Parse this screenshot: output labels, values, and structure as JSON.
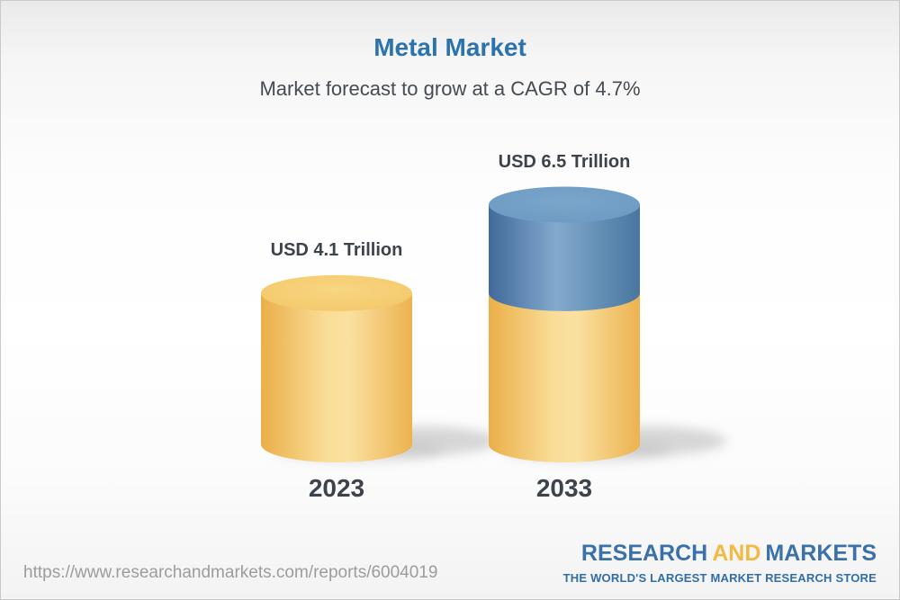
{
  "header": {
    "title": "Metal Market",
    "subtitle": "Market forecast to grow at a CAGR of 4.7%"
  },
  "chart_data": {
    "type": "bar",
    "variant": "3d-cylinder",
    "title": "Metal Market",
    "unit": "USD Trillion",
    "cagr_percent": 4.7,
    "categories": [
      "2023",
      "2033"
    ],
    "values": [
      4.1,
      6.5
    ],
    "legend": "none",
    "bars": [
      {
        "category": "2023",
        "value": 4.1,
        "label": "USD 4.1 Trillion",
        "segments": [
          {
            "name": "base",
            "value": 4.1,
            "color": "#f2c364"
          }
        ]
      },
      {
        "category": "2033",
        "value": 6.5,
        "label": "USD 6.5 Trillion",
        "segments": [
          {
            "name": "base",
            "value": 4.1,
            "color": "#f2c364"
          },
          {
            "name": "growth",
            "value": 2.4,
            "color": "#5d8fba"
          }
        ]
      }
    ]
  },
  "footer": {
    "report_url": "https://www.researchandmarkets.com/reports/6004019",
    "logo": {
      "word1": "RESEARCH",
      "word2": "AND",
      "word3": "MARKETS",
      "tagline": "THE WORLD'S LARGEST MARKET RESEARCH STORE",
      "blue": "#3a71a9",
      "yellow": "#f2ba45"
    }
  },
  "colors": {
    "title_blue": "#2c73ad",
    "text_dark": "#3d434b",
    "url_gray": "#9c9c9c",
    "bar_yellow": "#f2c364",
    "bar_blue": "#5d8fba"
  }
}
